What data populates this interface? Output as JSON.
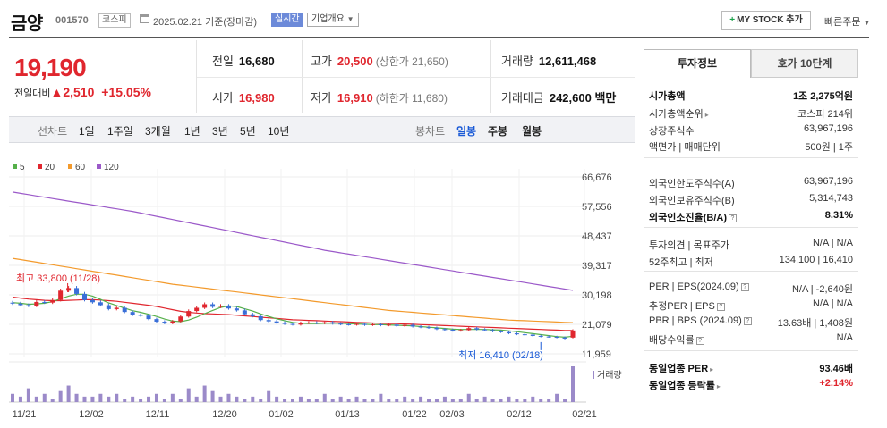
{
  "header": {
    "name": "금양",
    "code": "001570",
    "market": "코스피",
    "date": "2025.02.21 기준(장마감)",
    "realtime": "실시간",
    "company_info": "기업개요",
    "mystock": "MY STOCK 추가",
    "quick_order": "빠른주문"
  },
  "price": {
    "current": "19,190",
    "change_label": "전일대비",
    "change": "▲2,510",
    "change_pct": "+15.05%"
  },
  "quote": {
    "prev_label": "전일",
    "prev": "16,680",
    "high_label": "고가",
    "high": "20,500",
    "upper_limit": "(상한가 21,650)",
    "volume_label": "거래량",
    "volume": "12,611,468",
    "open_label": "시가",
    "open": "16,980",
    "low_label": "저가",
    "low": "16,910",
    "lower_limit": "(하한가 11,680)",
    "amount_label": "거래대금",
    "amount": "242,600 백만"
  },
  "period": {
    "label": "선차트",
    "items": [
      "1일",
      "1주일",
      "3개월",
      "1년",
      "3년",
      "5년",
      "10년"
    ],
    "candle_label": "봉차트",
    "candle_items": [
      "일봉",
      "주봉",
      "월봉"
    ],
    "candle_selected": "일봉"
  },
  "panel": {
    "tab_active": "투자정보",
    "tab_other": "호가 10단계",
    "rows": [
      {
        "k": "시가총액",
        "v": "1조 2,275억원"
      },
      {
        "k": "시가총액순위",
        "v": "코스피 214위"
      },
      {
        "k": "상장주식수",
        "v": "63,967,196"
      },
      {
        "k": "액면가 | 매매단위",
        "v": "500원 | 1주"
      },
      {
        "k": "외국인한도주식수(A)",
        "v": "63,967,196"
      },
      {
        "k": "외국인보유주식수(B)",
        "v": "5,314,743"
      },
      {
        "k": "외국인소진율(B/A)",
        "v": "8.31%"
      },
      {
        "k": "투자의견 | 목표주가",
        "v": "N/A | N/A"
      },
      {
        "k": "52주최고 | 최저",
        "v": "134,100 | 16,410"
      },
      {
        "k": "PER | EPS(2024.09)",
        "v": "N/A | -2,640원"
      },
      {
        "k": "추정PER | EPS",
        "v": "N/A | N/A"
      },
      {
        "k": "PBR | BPS (2024.09)",
        "v": "13.63배 | 1,408원"
      },
      {
        "k": "배당수익률",
        "v": "N/A"
      },
      {
        "k": "동일업종 PER",
        "v": "93.46배"
      },
      {
        "k": "동일업종 등락률",
        "v": "+2.14%"
      }
    ]
  },
  "chart_data": {
    "type": "candlestick",
    "legend": [
      "5",
      "20",
      "60",
      "120"
    ],
    "colors": {
      "ma5": "#55b04a",
      "ma20": "#e0262e",
      "ma60": "#f39a2c",
      "ma120": "#9b59c9",
      "up": "#e0262e",
      "down": "#3a6fd8",
      "volume": "#9b8ac9"
    },
    "y_ticks": [
      "66,676",
      "57,556",
      "48,437",
      "39,317",
      "30,198",
      "21,079",
      "11,959"
    ],
    "x_ticks": [
      "11/21",
      "12/02",
      "12/11",
      "12/20",
      "01/02",
      "01/13",
      "01/22",
      "02/03",
      "02/12",
      "02/21"
    ],
    "high_annotation": "최고 33,800 (11/28)",
    "low_annotation": "최저 16,410 (02/18)",
    "volume_label": "거래량",
    "close": [
      27500,
      27000,
      26800,
      28000,
      27800,
      28600,
      31500,
      32300,
      30500,
      28600,
      27900,
      27000,
      25800,
      26200,
      24900,
      24000,
      23800,
      22700,
      21900,
      21400,
      22000,
      23500,
      25200,
      26200,
      27300,
      26500,
      26800,
      26000,
      25400,
      24200,
      23600,
      22400,
      22000,
      21600,
      21200,
      21000,
      21500,
      21600,
      21400,
      21700,
      21300,
      21100,
      21000,
      21200,
      20900,
      21100,
      20800,
      21000,
      20600,
      20900,
      20400,
      20200,
      20000,
      19600,
      19400,
      19100,
      19300,
      19900,
      19500,
      19300,
      18900,
      18700,
      18300,
      18000,
      17900,
      17500,
      17300,
      17200,
      17000,
      16680,
      19190
    ],
    "ma5": [
      27800,
      27600,
      27300,
      27400,
      27600,
      28100,
      29000,
      29800,
      30400,
      30400,
      29800,
      28800,
      27700,
      26900,
      26100,
      25300,
      24800,
      24200,
      23500,
      22700,
      22100,
      21900,
      22400,
      23300,
      24400,
      25400,
      26300,
      26800,
      26600,
      25900,
      25200,
      24300,
      23500,
      22800,
      22200,
      21700,
      21400,
      21300,
      21300,
      21400,
      21400,
      21400,
      21300,
      21200,
      21100,
      21000,
      21000,
      20900,
      20800,
      20700,
      20600,
      20400,
      20200,
      20000,
      19800,
      19600,
      19500,
      19500,
      19500,
      19500,
      19400,
      19300,
      19100,
      18800,
      18500,
      18200,
      17900,
      17600,
      17300,
      17100,
      17400
    ],
    "ma20": [
      29500,
      29200,
      28900,
      28700,
      28500,
      28400,
      28400,
      28500,
      28600,
      28700,
      28700,
      28600,
      28400,
      28200,
      27900,
      27600,
      27300,
      27000,
      26600,
      26100,
      25600,
      25100,
      24800,
      24600,
      24400,
      24300,
      24200,
      24100,
      23900,
      23700,
      23500,
      23300,
      23100,
      22900,
      22700,
      22500,
      22400,
      22300,
      22200,
      22100,
      22000,
      21900,
      21800,
      21700,
      21600,
      21500,
      21400,
      21300,
      21300,
      21200,
      21100,
      21000,
      20900,
      20800,
      20700,
      20600,
      20500,
      20400,
      20300,
      20200,
      20100,
      20000,
      19900,
      19800,
      19700,
      19600,
      19500,
      19400,
      19300,
      19200,
      19200
    ],
    "ma60": [
      41500,
      41100,
      40700,
      40300,
      39900,
      39500,
      39100,
      38700,
      38300,
      37900,
      37500,
      37100,
      36700,
      36300,
      35900,
      35500,
      35100,
      34700,
      34300,
      33900,
      33500,
      33200,
      32900,
      32600,
      32300,
      32000,
      31700,
      31400,
      31100,
      30800,
      30500,
      30200,
      29900,
      29600,
      29300,
      29000,
      28700,
      28400,
      28100,
      27800,
      27500,
      27200,
      26900,
      26600,
      26300,
      26000,
      25700,
      25400,
      25200,
      25000,
      24800,
      24600,
      24400,
      24200,
      24000,
      23800,
      23600,
      23400,
      23200,
      23000,
      22800,
      22600,
      22400,
      22300,
      22200,
      22100,
      22000,
      21900,
      21800,
      21700,
      21600
    ],
    "ma120": [
      62000,
      61600,
      61200,
      60800,
      60400,
      60000,
      59600,
      59200,
      58800,
      58400,
      58000,
      57600,
      57200,
      56800,
      56400,
      56000,
      55500,
      55000,
      54500,
      54000,
      53500,
      53000,
      52500,
      52000,
      51500,
      51000,
      50500,
      50000,
      49500,
      49000,
      48500,
      48000,
      47500,
      47000,
      46500,
      46000,
      45500,
      45000,
      44500,
      44000,
      43600,
      43200,
      42800,
      42400,
      42000,
      41600,
      41200,
      40800,
      40400,
      40000,
      39600,
      39200,
      38800,
      38400,
      38000,
      37600,
      37200,
      36800,
      36400,
      36000,
      35600,
      35200,
      34800,
      34400,
      34000,
      33600,
      33200,
      32800,
      32400,
      32000,
      31600
    ],
    "volume": [
      3,
      2,
      5,
      2,
      3,
      1,
      4,
      6,
      3,
      2,
      2,
      3,
      2,
      3,
      1,
      2,
      1,
      2,
      3,
      1,
      3,
      1,
      5,
      2,
      6,
      4,
      2,
      3,
      2,
      1,
      2,
      1,
      4,
      2,
      1,
      1,
      2,
      1,
      1,
      3,
      1,
      2,
      1,
      2,
      1,
      1,
      3,
      1,
      1,
      2,
      1,
      2,
      1,
      1,
      2,
      1,
      1,
      3,
      1,
      2,
      1,
      1,
      2,
      1,
      1,
      2,
      1,
      1,
      3,
      1,
      13
    ]
  }
}
